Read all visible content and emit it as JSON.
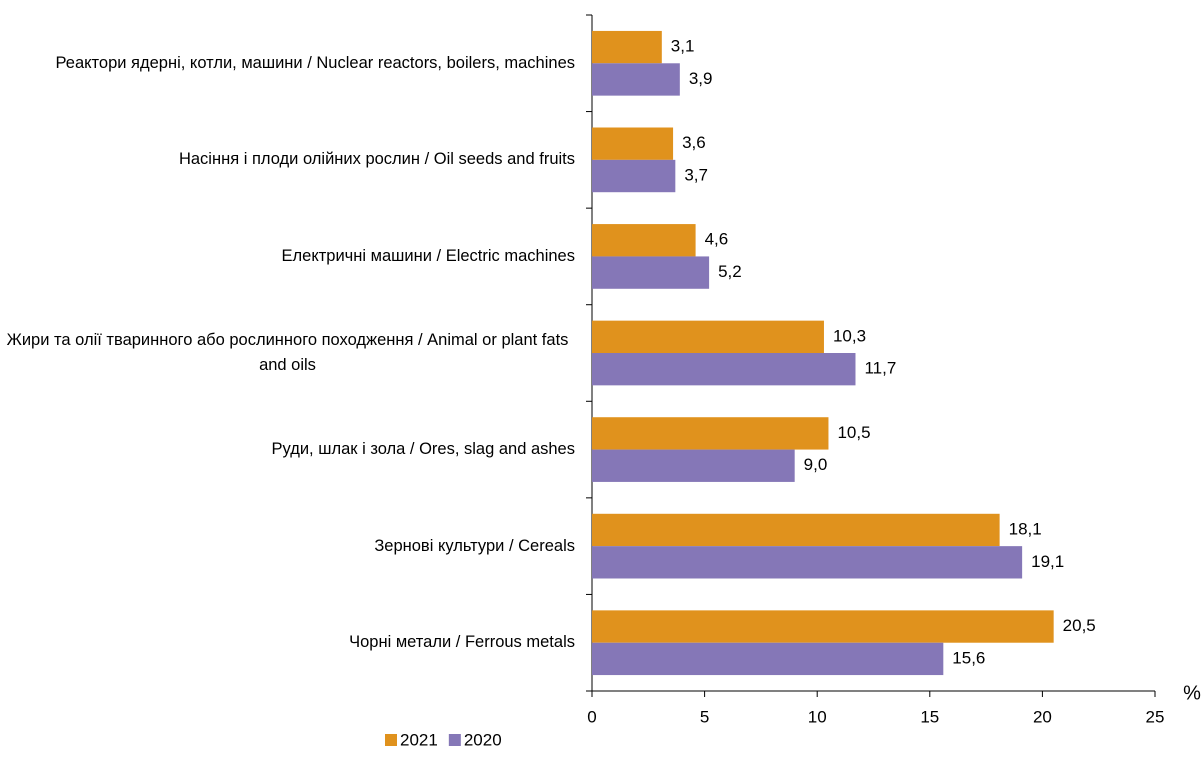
{
  "chart_data": {
    "type": "hbar",
    "categories": [
      "Реактори ядерні, котли, машини / Nuclear reactors, boilers, machines",
      "Насіння і плоди олійних рослин / Oil seeds and fruits",
      "Електричні машини / Electric machines",
      "Жири та олії тваринного або рослинного походження / Animal or plant fats and oils",
      "Руди, шлак і зола / Ores, slag and ashes",
      "Зернові культури / Cereals",
      "Чорні метали / Ferrous metals"
    ],
    "series": [
      {
        "name": "2021",
        "color": "#e0921d",
        "values": [
          3.1,
          3.6,
          4.6,
          10.3,
          10.5,
          18.1,
          20.5
        ],
        "value_labels": [
          "3,1",
          "3,6",
          "4,6",
          "10,3",
          "10,5",
          "18,1",
          "20,5"
        ]
      },
      {
        "name": "2020",
        "color": "#8577b7",
        "values": [
          3.9,
          3.7,
          5.2,
          11.7,
          9.0,
          19.1,
          15.6
        ],
        "value_labels": [
          "3,9",
          "3,7",
          "5,2",
          "11,7",
          "9,0",
          "19,1",
          "15,6"
        ]
      }
    ],
    "x_label": "%",
    "xlim": [
      0,
      25
    ],
    "xticks": [
      0,
      5,
      10,
      15,
      20,
      25
    ],
    "legend": "bottom"
  }
}
